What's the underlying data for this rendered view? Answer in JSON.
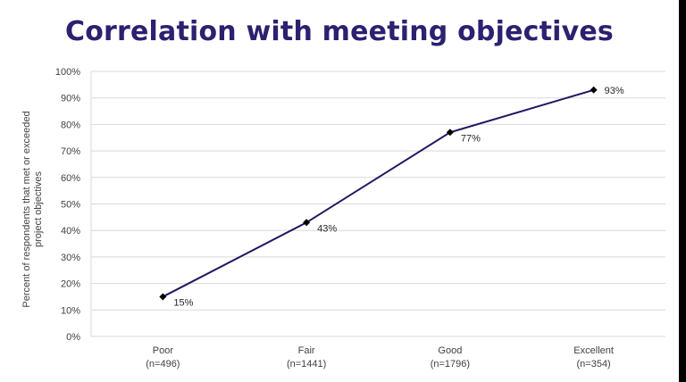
{
  "chart_data": {
    "type": "line",
    "title": "Correlation with meeting objectives",
    "ylabel_lines": [
      "Percent of respondents that met or exceeded",
      "project objectives"
    ],
    "xlabel": "",
    "categories": [
      {
        "label": "Poor",
        "n": "(n=496)"
      },
      {
        "label": "Fair",
        "n": "(n=1441)"
      },
      {
        "label": "Good",
        "n": "(n=1796)"
      },
      {
        "label": "Excellent",
        "n": "(n=354)"
      }
    ],
    "values": [
      15,
      43,
      77,
      93
    ],
    "data_labels": [
      "15%",
      "43%",
      "77%",
      "93%"
    ],
    "ylim": [
      0,
      100
    ],
    "yticks": [
      "0%",
      "10%",
      "20%",
      "30%",
      "40%",
      "50%",
      "60%",
      "70%",
      "80%",
      "90%",
      "100%"
    ],
    "grid": true,
    "line_color": "#1f1660",
    "title_color": "#2b2170",
    "grid_color": "#d9d9d9"
  }
}
